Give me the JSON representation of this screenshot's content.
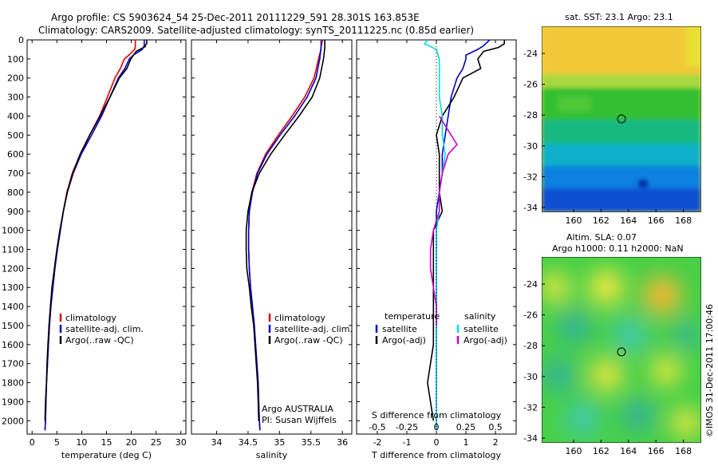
{
  "header": {
    "line1": "Argo profile: CS 5903624_54 25-Dec-2011 20111229_591 28.301S 163.853E",
    "line2": "Climatology: CARS2009. Satellite-adjusted climatology: synTS_20111225.nc (0.85d earlier)"
  },
  "chart_data": [
    {
      "type": "line",
      "name": "temperature-profile",
      "xlabel": "temperature (deg C)",
      "ylabel": "",
      "xlim": [
        -1,
        31
      ],
      "ylim": [
        2070,
        0
      ],
      "xticks": [
        0,
        5,
        10,
        15,
        20,
        25,
        30
      ],
      "yticks": [
        0,
        100,
        200,
        300,
        400,
        500,
        600,
        700,
        800,
        900,
        1000,
        1100,
        1200,
        1300,
        1400,
        1500,
        1600,
        1700,
        1800,
        1900,
        2000
      ],
      "legend": [
        "climatology",
        "satellite-adj. clim.",
        "Argo(..raw -QC)"
      ],
      "series": [
        {
          "name": "climatology",
          "color": "#dd0000",
          "points": [
            [
              20.8,
              0
            ],
            [
              20.8,
              30
            ],
            [
              20.7,
              50
            ],
            [
              19.5,
              80
            ],
            [
              18.6,
              100
            ],
            [
              17.8,
              150
            ],
            [
              16.7,
              200
            ],
            [
              15.2,
              300
            ],
            [
              13.6,
              400
            ],
            [
              11.6,
              500
            ],
            [
              9.7,
              600
            ],
            [
              8.1,
              700
            ],
            [
              7.0,
              800
            ],
            [
              6.3,
              900
            ],
            [
              5.7,
              1000
            ],
            [
              5.1,
              1100
            ],
            [
              4.6,
              1200
            ],
            [
              4.2,
              1300
            ],
            [
              3.8,
              1400
            ],
            [
              3.5,
              1500
            ],
            [
              3.3,
              1600
            ],
            [
              3.1,
              1700
            ],
            [
              2.9,
              1800
            ],
            [
              2.8,
              1900
            ],
            [
              2.7,
              2000
            ],
            [
              2.6,
              2050
            ]
          ]
        },
        {
          "name": "satellite-adj. clim.",
          "color": "#0000cc",
          "points": [
            [
              22.6,
              0
            ],
            [
              22.6,
              30
            ],
            [
              22.2,
              50
            ],
            [
              20.4,
              80
            ],
            [
              19.6,
              100
            ],
            [
              18.7,
              150
            ],
            [
              17.4,
              200
            ],
            [
              15.7,
              300
            ],
            [
              14.0,
              400
            ],
            [
              12.0,
              500
            ],
            [
              9.9,
              600
            ],
            [
              8.3,
              700
            ],
            [
              7.1,
              800
            ],
            [
              6.3,
              900
            ],
            [
              5.7,
              1000
            ],
            [
              5.1,
              1100
            ],
            [
              4.6,
              1200
            ],
            [
              4.2,
              1300
            ],
            [
              3.8,
              1400
            ],
            [
              3.5,
              1500
            ],
            [
              3.3,
              1600
            ],
            [
              3.1,
              1700
            ],
            [
              2.9,
              1800
            ],
            [
              2.8,
              1900
            ],
            [
              2.7,
              2000
            ],
            [
              2.6,
              2050
            ]
          ]
        },
        {
          "name": "Argo(..raw -QC)",
          "color": "#000000",
          "points": [
            [
              23.1,
              0
            ],
            [
              23.1,
              20
            ],
            [
              22.9,
              25
            ],
            [
              22.8,
              35
            ],
            [
              21.0,
              60
            ],
            [
              19.9,
              100
            ],
            [
              19.1,
              150
            ],
            [
              17.6,
              200
            ],
            [
              15.7,
              300
            ],
            [
              13.7,
              400
            ],
            [
              11.6,
              500
            ],
            [
              9.7,
              600
            ],
            [
              8.2,
              700
            ],
            [
              7.1,
              800
            ],
            [
              6.3,
              900
            ],
            [
              5.6,
              1000
            ],
            [
              5.0,
              1100
            ],
            [
              4.5,
              1200
            ],
            [
              4.0,
              1300
            ],
            [
              3.7,
              1400
            ],
            [
              3.4,
              1500
            ],
            [
              3.2,
              1600
            ],
            [
              3.0,
              1700
            ],
            [
              2.9,
              1800
            ],
            [
              2.7,
              1900
            ],
            [
              2.6,
              2000
            ]
          ]
        }
      ]
    },
    {
      "type": "line",
      "name": "salinity-profile",
      "xlabel": "salinity",
      "xlim": [
        33.6,
        36.15
      ],
      "ylim": [
        2070,
        0
      ],
      "xticks": [
        34,
        34.5,
        35,
        35.5,
        36
      ],
      "legend": [
        "climatology",
        "satellite-adj. clim.",
        "Argo(..raw -QC)"
      ],
      "annotation": [
        "Argo AUSTRALIA",
        "PI: Susan Wijffels"
      ],
      "series": [
        {
          "name": "climatology",
          "color": "#dd0000",
          "points": [
            [
              35.66,
              0
            ],
            [
              35.66,
              50
            ],
            [
              35.62,
              100
            ],
            [
              35.55,
              200
            ],
            [
              35.4,
              300
            ],
            [
              35.2,
              400
            ],
            [
              34.98,
              500
            ],
            [
              34.78,
              600
            ],
            [
              34.64,
              700
            ],
            [
              34.56,
              800
            ],
            [
              34.52,
              900
            ],
            [
              34.51,
              1000
            ],
            [
              34.51,
              1100
            ],
            [
              34.52,
              1200
            ],
            [
              34.54,
              1300
            ],
            [
              34.57,
              1400
            ],
            [
              34.6,
              1500
            ],
            [
              34.62,
              1600
            ],
            [
              34.64,
              1700
            ],
            [
              34.66,
              1800
            ],
            [
              34.67,
              1900
            ],
            [
              34.68,
              2000
            ],
            [
              34.69,
              2050
            ]
          ]
        },
        {
          "name": "satellite-adj. clim.",
          "color": "#0000cc",
          "points": [
            [
              35.68,
              0
            ],
            [
              35.66,
              40
            ],
            [
              35.64,
              100
            ],
            [
              35.58,
              200
            ],
            [
              35.44,
              300
            ],
            [
              35.24,
              400
            ],
            [
              35.01,
              500
            ],
            [
              34.8,
              600
            ],
            [
              34.65,
              700
            ],
            [
              34.57,
              800
            ],
            [
              34.52,
              900
            ],
            [
              34.51,
              1000
            ],
            [
              34.51,
              1100
            ],
            [
              34.52,
              1200
            ],
            [
              34.54,
              1300
            ],
            [
              34.57,
              1400
            ],
            [
              34.6,
              1500
            ],
            [
              34.62,
              1600
            ],
            [
              34.64,
              1700
            ],
            [
              34.66,
              1800
            ],
            [
              34.67,
              1900
            ],
            [
              34.68,
              2000
            ],
            [
              34.69,
              2050
            ]
          ]
        },
        {
          "name": "Argo(..raw -QC)",
          "color": "#000000",
          "points": [
            [
              35.72,
              0
            ],
            [
              35.72,
              40
            ],
            [
              35.7,
              100
            ],
            [
              35.64,
              200
            ],
            [
              35.52,
              300
            ],
            [
              35.31,
              400
            ],
            [
              35.08,
              500
            ],
            [
              34.86,
              600
            ],
            [
              34.68,
              700
            ],
            [
              34.56,
              800
            ],
            [
              34.5,
              900
            ],
            [
              34.47,
              1000
            ],
            [
              34.47,
              1100
            ],
            [
              34.48,
              1200
            ],
            [
              34.52,
              1300
            ],
            [
              34.55,
              1400
            ],
            [
              34.59,
              1500
            ],
            [
              34.61,
              1600
            ],
            [
              34.63,
              1700
            ],
            [
              34.65,
              1800
            ],
            [
              34.66,
              1900
            ],
            [
              34.67,
              2000
            ]
          ]
        }
      ]
    },
    {
      "type": "line",
      "name": "difference-profile",
      "xlabel": "T difference from climatology",
      "xlabel_top": "S difference from climatology",
      "xlim": [
        -2.7,
        2.7
      ],
      "ylim": [
        2070,
        0
      ],
      "xticks": [
        -2,
        -1,
        0,
        1,
        2
      ],
      "xticklabels_s": [
        "-0.5",
        "-0.25",
        "0",
        "0.25",
        "0.5"
      ],
      "legend_left_title": "temperature",
      "legend_right_title": "salinity",
      "legend": [
        "satellite",
        "Argo(-adj)",
        "satellite",
        "Argo(-adj)"
      ],
      "series": [
        {
          "name": "T satellite",
          "color": "#0000cc",
          "points": [
            [
              1.8,
              0
            ],
            [
              1.6,
              30
            ],
            [
              1.4,
              50
            ],
            [
              1.0,
              80
            ],
            [
              1.0,
              100
            ],
            [
              0.9,
              150
            ],
            [
              0.7,
              200
            ],
            [
              0.5,
              300
            ],
            [
              0.4,
              400
            ],
            [
              0.3,
              500
            ],
            [
              0.2,
              600
            ],
            [
              0.2,
              700
            ],
            [
              0.1,
              800
            ],
            [
              0.0,
              900
            ],
            [
              0.0,
              1000
            ],
            [
              0.0,
              1200
            ],
            [
              0.0,
              1600
            ],
            [
              0.0,
              2050
            ]
          ]
        },
        {
          "name": "T Argo(-adj)",
          "color": "#000000",
          "points": [
            [
              2.3,
              0
            ],
            [
              2.3,
              20
            ],
            [
              2.2,
              30
            ],
            [
              2.1,
              40
            ],
            [
              1.6,
              60
            ],
            [
              1.4,
              100
            ],
            [
              1.5,
              150
            ],
            [
              0.9,
              200
            ],
            [
              0.6,
              300
            ],
            [
              0.2,
              400
            ],
            [
              0.0,
              500
            ],
            [
              0.1,
              600
            ],
            [
              0.1,
              700
            ],
            [
              0.1,
              800
            ],
            [
              0.2,
              900
            ],
            [
              -0.1,
              1000
            ],
            [
              -0.1,
              1100
            ],
            [
              -0.1,
              1300
            ],
            [
              -0.1,
              1500
            ],
            [
              -0.1,
              1600
            ],
            [
              -0.2,
              1700
            ],
            [
              -0.3,
              1800
            ],
            [
              -0.2,
              1900
            ],
            [
              -0.1,
              2000
            ]
          ]
        },
        {
          "name": "S satellite",
          "color": "#00dddd",
          "points": [
            [
              -0.3,
              0
            ],
            [
              -0.4,
              20
            ],
            [
              0.0,
              50
            ],
            [
              0.1,
              100
            ],
            [
              0.1,
              200
            ],
            [
              0.1,
              300
            ],
            [
              0.2,
              400
            ],
            [
              0.2,
              500
            ],
            [
              0.3,
              600
            ],
            [
              0.2,
              700
            ],
            [
              0.1,
              800
            ],
            [
              0.1,
              900
            ],
            [
              0.0,
              1000
            ],
            [
              0.0,
              1500
            ],
            [
              0.0,
              2050
            ]
          ]
        },
        {
          "name": "S Argo(-adj)",
          "color": "#cc00cc",
          "points": [
            [
              0.1,
              400
            ],
            [
              0.5,
              500
            ],
            [
              0.7,
              550
            ],
            [
              0.4,
              600
            ],
            [
              0.2,
              700
            ],
            [
              0.1,
              800
            ],
            [
              0.1,
              900
            ],
            [
              -0.1,
              1000
            ],
            [
              -0.2,
              1100
            ],
            [
              -0.2,
              1200
            ],
            [
              -0.1,
              1300
            ],
            [
              0.0,
              1400
            ],
            [
              0.0,
              1500
            ]
          ]
        }
      ]
    }
  ],
  "maps": [
    {
      "name": "sst-map",
      "title": "sat. SST: 23.1  Argo: 23.1",
      "yticks": [
        "-24",
        "-26",
        "-28",
        "-30",
        "-32",
        "-34"
      ],
      "xticks": [
        "160",
        "162",
        "164",
        "166",
        "168"
      ],
      "colors": {
        "yellow": "#f0e040",
        "green": "#30c030",
        "blue": "#1060e0"
      }
    },
    {
      "name": "sla-map",
      "title1": "Altim. SLA: 0.07",
      "title2": "Argo h1000: 0.11 h2000: NaN",
      "yticks": [
        "-24",
        "-26",
        "-28",
        "-30",
        "-32",
        "-34"
      ],
      "xticks": [
        "160",
        "162",
        "164",
        "166",
        "168"
      ],
      "colors": {
        "yellow": "#f8e840",
        "green": "#40d040",
        "teal": "#30b0a0"
      }
    }
  ],
  "copyright": "©IMOS 31-Dec-2011 17:00:46"
}
